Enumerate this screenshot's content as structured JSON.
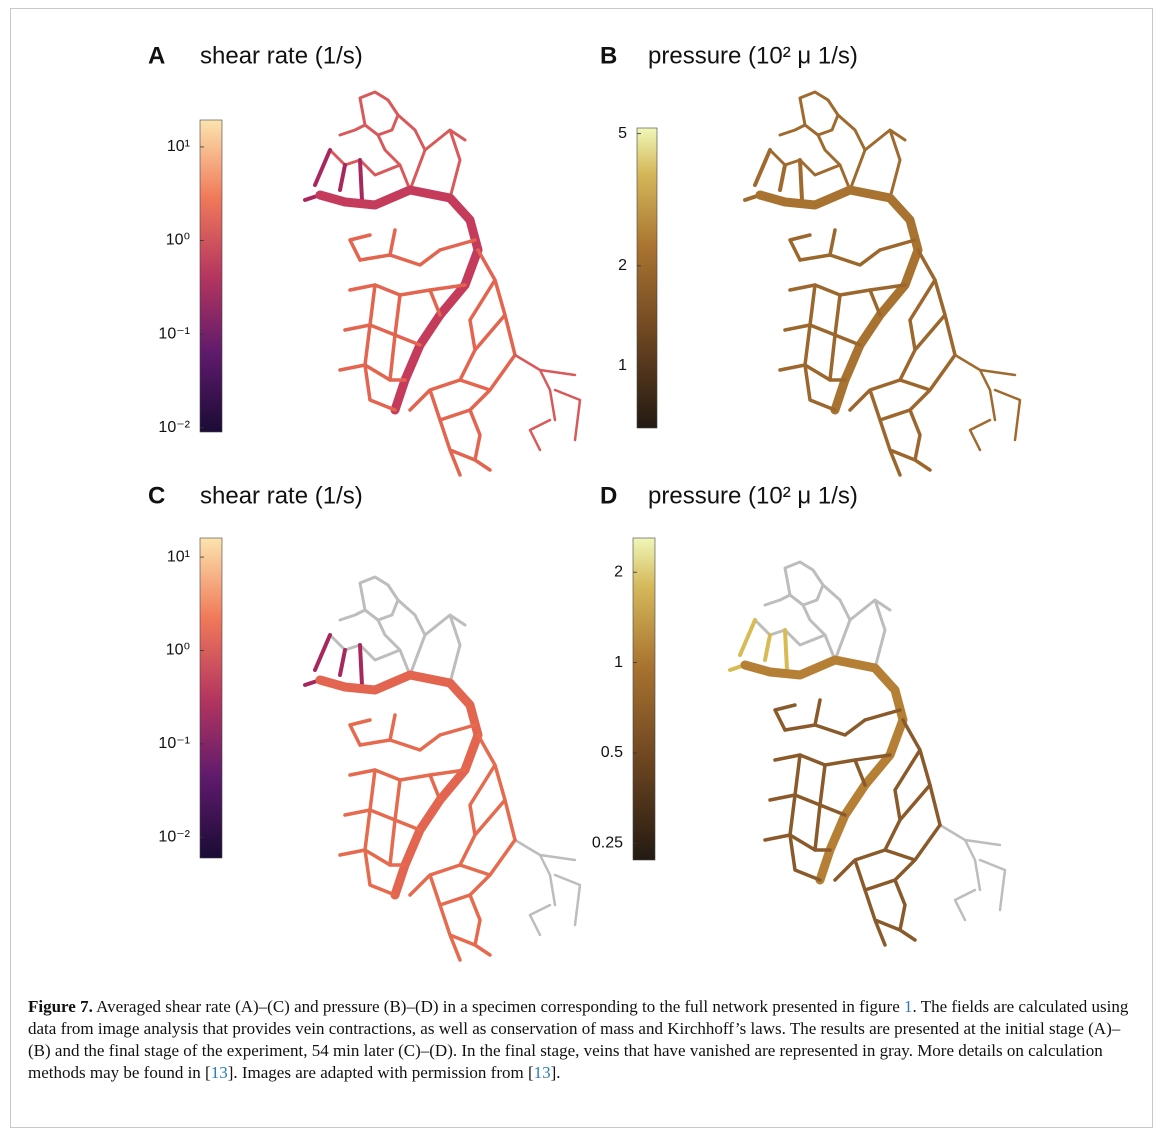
{
  "panels": [
    {
      "letter": "A",
      "title": "shear rate (1/s)",
      "colorbar": {
        "scale": "log",
        "colormap": "magma",
        "lim": [
          0.009,
          19.4
        ],
        "ticks": [
          {
            "value": 10,
            "label": "10¹"
          },
          {
            "value": 1,
            "label": "10⁰"
          },
          {
            "value": 0.1,
            "label": "10⁻¹"
          },
          {
            "value": 0.01,
            "label": "10⁻²"
          }
        ]
      }
    },
    {
      "letter": "B",
      "title": "pressure (10² μ 1/s)",
      "colorbar": {
        "scale": "log",
        "colormap": "pressure",
        "lim": [
          0.65,
          5.2
        ],
        "ticks": [
          5,
          2,
          1
        ]
      }
    },
    {
      "letter": "C",
      "title": "shear rate (1/s)",
      "colorbar": {
        "scale": "log",
        "colormap": "magma",
        "lim": [
          0.006,
          16
        ],
        "ticks": [
          {
            "value": 10,
            "label": "10¹"
          },
          {
            "value": 1,
            "label": "10⁰"
          },
          {
            "value": 0.1,
            "label": "10⁻¹"
          },
          {
            "value": 0.01,
            "label": "10⁻²"
          }
        ]
      }
    },
    {
      "letter": "D",
      "title": "pressure (10² μ 1/s)",
      "colorbar": {
        "scale": "log",
        "colormap": "pressure",
        "lim": [
          0.22,
          2.6
        ],
        "ticks": [
          2,
          1,
          0.5,
          0.25
        ]
      }
    }
  ],
  "caption": {
    "label": "Figure 7.",
    "segments": [
      {
        "text": " Averaged shear rate (A)–(C) and pressure (B)–(D) in a specimen corresponding to the full network presented in figure "
      },
      {
        "text": "1",
        "ref": true
      },
      {
        "text": ". The fields are calculated using data from image analysis that provides vein contractions, as well as conservation of mass and Kirchhoff’s laws. The results are presented at the initial stage (A)–(B) and the final stage of the experiment, 54 min later (C)–(D). In the final stage, veins that have vanished are represented in gray. More details on calculation methods may be found in ["
      },
      {
        "text": "13",
        "ref": true
      },
      {
        "text": "]. Images are adapted with permission from ["
      },
      {
        "text": "13",
        "ref": true
      },
      {
        "text": "]."
      }
    ]
  }
}
